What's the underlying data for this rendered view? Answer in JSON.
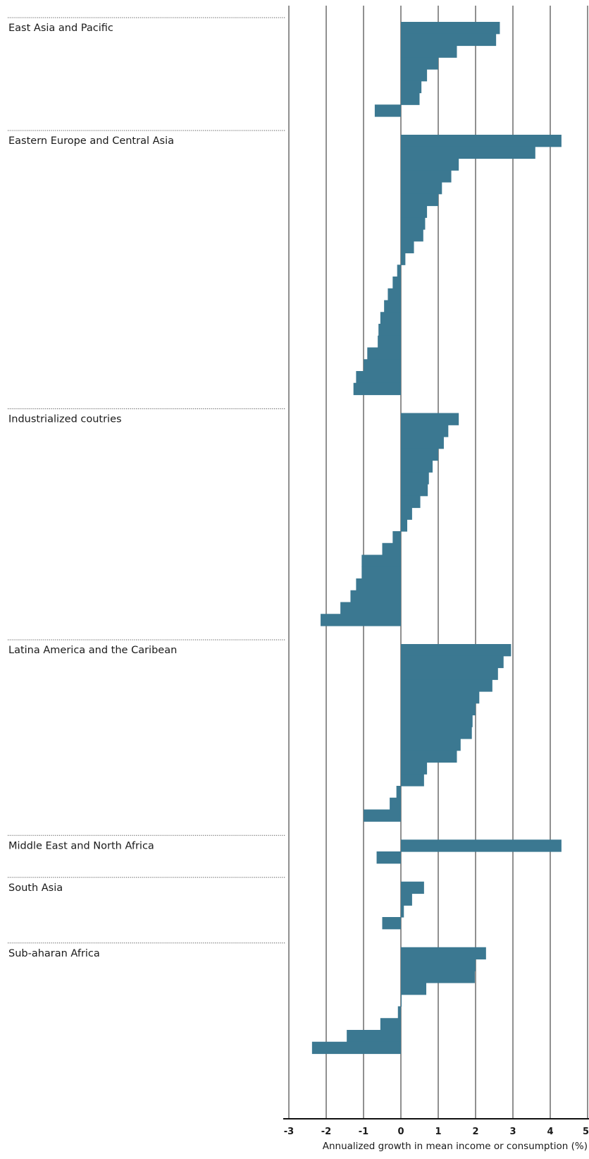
{
  "chart_data": {
    "type": "bar",
    "orientation": "horizontal",
    "xlabel": "Annualized growth in mean income or consumption (%)",
    "xlim": [
      -3,
      5
    ],
    "xticks": [
      -3,
      -2,
      -1,
      0,
      1,
      2,
      3,
      4,
      5
    ],
    "xtick_labels": [
      "-3",
      "-2",
      "-1",
      "0",
      "1",
      "2",
      "3",
      "4",
      "5"
    ],
    "grid": "vertical",
    "bar_color": "#3b7891",
    "groups": [
      {
        "name": "East Asia and Pacific",
        "values": [
          2.65,
          2.55,
          1.5,
          1.0,
          0.7,
          0.55,
          0.5,
          -0.7
        ]
      },
      {
        "name": "Eastern Europe and Central Asia",
        "values": [
          4.3,
          3.6,
          1.55,
          1.35,
          1.1,
          1.0,
          0.7,
          0.65,
          0.6,
          0.35,
          0.12,
          -0.1,
          -0.22,
          -0.35,
          -0.45,
          -0.55,
          -0.6,
          -0.62,
          -0.9,
          -1.0,
          -1.2,
          -1.27
        ]
      },
      {
        "name": "Industrialized coutries",
        "values": [
          1.55,
          1.27,
          1.15,
          1.0,
          0.85,
          0.75,
          0.72,
          0.52,
          0.3,
          0.17,
          -0.22,
          -0.5,
          -1.05,
          -1.05,
          -1.2,
          -1.35,
          -1.62,
          -2.15
        ]
      },
      {
        "name": "Latina America and the Caribean",
        "values": [
          2.95,
          2.75,
          2.6,
          2.45,
          2.1,
          2.0,
          1.92,
          1.9,
          1.6,
          1.5,
          0.7,
          0.62,
          -0.12,
          -0.3,
          -1.0
        ]
      },
      {
        "name": "Middle East and North Africa",
        "values": [
          4.3,
          -0.65
        ]
      },
      {
        "name": "South Asia",
        "values": [
          0.62,
          0.3,
          0.08,
          -0.5
        ]
      },
      {
        "name": "Sub-aharan Africa",
        "values": [
          2.28,
          2.0,
          1.98,
          0.68,
          0.02,
          -0.08,
          -0.55,
          -1.45,
          -2.38
        ]
      }
    ]
  }
}
